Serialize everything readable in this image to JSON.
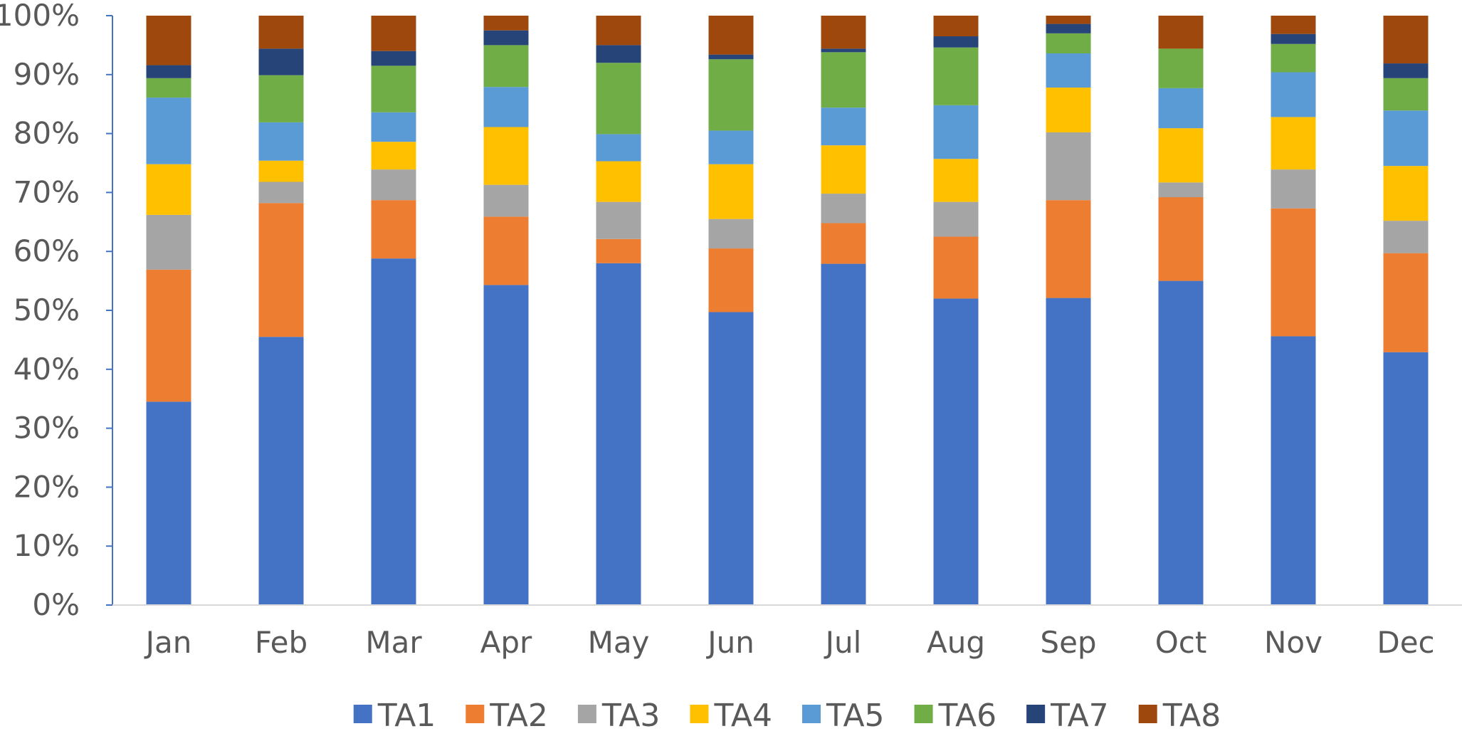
{
  "chart_data": {
    "type": "bar",
    "stacked": "percent",
    "categories": [
      "Jan",
      "Feb",
      "Mar",
      "Apr",
      "May",
      "Jun",
      "Jul",
      "Aug",
      "Sep",
      "Oct",
      "Nov",
      "Dec"
    ],
    "y_ticks": [
      "0%",
      "10%",
      "20%",
      "30%",
      "40%",
      "50%",
      "60%",
      "70%",
      "80%",
      "90%",
      "100%"
    ],
    "ylim": [
      0,
      100
    ],
    "y_unit": "%",
    "grid": false,
    "legend_position": "bottom",
    "title": "",
    "xlabel": "",
    "ylabel": "",
    "axis_color": "#4472C4",
    "series": [
      {
        "name": "TA1",
        "color": "#4472C4",
        "values": [
          34.5,
          45.5,
          58.8,
          54.3,
          58.0,
          49.7,
          57.9,
          52.0,
          52.1,
          55.0,
          45.6,
          42.9
        ]
      },
      {
        "name": "TA2",
        "color": "#ED7D31",
        "values": [
          22.4,
          22.7,
          9.9,
          11.6,
          4.1,
          10.8,
          6.9,
          10.5,
          16.6,
          14.2,
          21.7,
          16.8
        ]
      },
      {
        "name": "TA3",
        "color": "#A5A5A5",
        "values": [
          9.3,
          3.6,
          5.2,
          5.4,
          6.3,
          5.0,
          5.0,
          5.9,
          11.5,
          2.5,
          6.6,
          5.5
        ]
      },
      {
        "name": "TA4",
        "color": "#FFC000",
        "values": [
          8.6,
          3.6,
          4.7,
          9.8,
          6.9,
          9.3,
          8.2,
          7.3,
          7.6,
          9.2,
          8.9,
          9.3
        ]
      },
      {
        "name": "TA5",
        "color": "#5B9BD5",
        "values": [
          11.3,
          6.5,
          5.0,
          6.8,
          4.6,
          5.7,
          6.4,
          9.1,
          5.8,
          6.8,
          7.6,
          9.4
        ]
      },
      {
        "name": "TA6",
        "color": "#70AD47",
        "values": [
          3.3,
          8.0,
          7.9,
          7.1,
          12.1,
          12.1,
          9.4,
          9.8,
          3.4,
          6.7,
          4.8,
          5.5
        ]
      },
      {
        "name": "TA7",
        "color": "#264478",
        "values": [
          2.2,
          4.5,
          2.5,
          2.5,
          3.0,
          0.8,
          0.6,
          1.9,
          1.6,
          0.0,
          1.7,
          2.5
        ]
      },
      {
        "name": "TA8",
        "color": "#9E480E",
        "values": [
          8.4,
          5.6,
          6.0,
          2.5,
          5.0,
          6.6,
          5.6,
          3.5,
          1.4,
          5.6,
          3.1,
          8.1
        ]
      }
    ]
  }
}
